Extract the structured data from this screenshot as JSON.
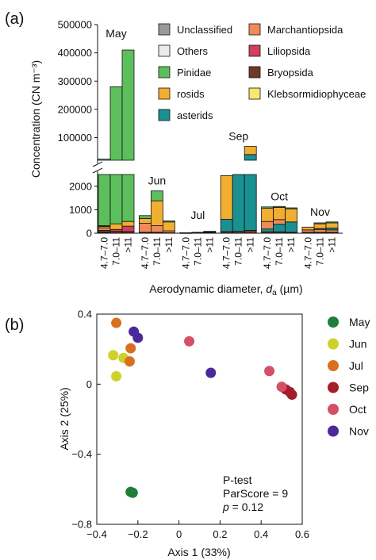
{
  "panel_a": {
    "label": "(a)",
    "ylabel": "Concentration (CN m⁻³)",
    "xlabel_main": "Aerodynamic diameter,",
    "xlabel_var": "d",
    "xlabel_sub": "a",
    "xlabel_unit": "(µm)"
  },
  "panel_b": {
    "label": "(b)",
    "stats_title": "P-test",
    "stats_score": "ParScore = 9",
    "stats_p_var": "p",
    "stats_p_rest": " = 0.12"
  },
  "chart_data": [
    {
      "type": "bar",
      "stacked": true,
      "y_axis_broken": true,
      "y_lower_ticks": [
        0,
        1000,
        2000
      ],
      "y_upper_ticks": [
        100000,
        200000,
        300000,
        400000,
        500000
      ],
      "ylim_lower": [
        0,
        2500
      ],
      "ylim_upper": [
        20000,
        500000
      ],
      "legend": [
        {
          "name": "Unclassified",
          "color": "#9a9a9a"
        },
        {
          "name": "Others",
          "color": "#ebebeb"
        },
        {
          "name": "Pinidae",
          "color": "#5cbf5c"
        },
        {
          "name": "rosids",
          "color": "#f2ae30"
        },
        {
          "name": "asterids",
          "color": "#1a9090"
        },
        {
          "name": "Marchantiopsida",
          "color": "#f08a5a"
        },
        {
          "name": "Liliopsida",
          "color": "#d23f5e"
        },
        {
          "name": "Bryopsida",
          "color": "#6e3a24"
        },
        {
          "name": "Klebsormidiophyceae",
          "color": "#f6e870"
        }
      ],
      "size_bins": [
        "4.7–7.0",
        "7.0–11",
        ">11"
      ],
      "groups": [
        {
          "month": "May",
          "bars": [
            {
              "bin": "4.7–7.0",
              "segments": [
                {
                  "taxon": "Others",
                  "value": 30
                },
                {
                  "taxon": "Bryopsida",
                  "value": 90
                },
                {
                  "taxon": "Marchantiopsida",
                  "value": 110
                },
                {
                  "taxon": "rosids",
                  "value": 60
                },
                {
                  "taxon": "Liliopsida",
                  "value": 30
                },
                {
                  "taxon": "Pinidae",
                  "value": 23680
                }
              ]
            },
            {
              "bin": "7.0–11",
              "segments": [
                {
                  "taxon": "Bryopsida",
                  "value": 80
                },
                {
                  "taxon": "Liliopsida",
                  "value": 80
                },
                {
                  "taxon": "rosids",
                  "value": 240
                },
                {
                  "taxon": "Pinidae",
                  "value": 279600
                }
              ]
            },
            {
              "bin": ">11",
              "segments": [
                {
                  "taxon": "Bryopsida",
                  "value": 70
                },
                {
                  "taxon": "Liliopsida",
                  "value": 230
                },
                {
                  "taxon": "rosids",
                  "value": 200
                },
                {
                  "taxon": "Pinidae",
                  "value": 409500
                }
              ]
            }
          ]
        },
        {
          "month": "Jun",
          "bars": [
            {
              "bin": "4.7–7.0",
              "segments": [
                {
                  "taxon": "Bryopsida",
                  "value": 40
                },
                {
                  "taxon": "Marchantiopsida",
                  "value": 380
                },
                {
                  "taxon": "rosids",
                  "value": 210
                },
                {
                  "taxon": "Pinidae",
                  "value": 120
                }
              ]
            },
            {
              "bin": "7.0–11",
              "segments": [
                {
                  "taxon": "Bryopsida",
                  "value": 40
                },
                {
                  "taxon": "Marchantiopsida",
                  "value": 280
                },
                {
                  "taxon": "rosids",
                  "value": 1060
                },
                {
                  "taxon": "Pinidae",
                  "value": 420
                }
              ]
            },
            {
              "bin": ">11",
              "segments": [
                {
                  "taxon": "Bryopsida",
                  "value": 20
                },
                {
                  "taxon": "Marchantiopsida",
                  "value": 80
                },
                {
                  "taxon": "rosids",
                  "value": 380
                },
                {
                  "taxon": "Pinidae",
                  "value": 40
                }
              ]
            }
          ]
        },
        {
          "month": "Jul",
          "bars": [
            {
              "bin": "4.7–7.0",
              "segments": [
                {
                  "taxon": "Others",
                  "value": 10
                },
                {
                  "taxon": "rosids",
                  "value": 10
                }
              ]
            },
            {
              "bin": "7.0–11",
              "segments": [
                {
                  "taxon": "Others",
                  "value": 20
                },
                {
                  "taxon": "rosids",
                  "value": 20
                }
              ]
            },
            {
              "bin": ">11",
              "segments": [
                {
                  "taxon": "Others",
                  "value": 30
                },
                {
                  "taxon": "rosids",
                  "value": 30
                },
                {
                  "taxon": "Unclassified",
                  "value": 20
                }
              ]
            }
          ]
        },
        {
          "month": "Sep",
          "bars": [
            {
              "bin": "4.7–7.0",
              "segments": [
                {
                  "taxon": "Bryopsida",
                  "value": 70
                },
                {
                  "taxon": "asterids",
                  "value": 520
                },
                {
                  "taxon": "rosids",
                  "value": 1860
                }
              ]
            },
            {
              "bin": "7.0–11",
              "segments": [
                {
                  "taxon": "Bryopsida",
                  "value": 80
                },
                {
                  "taxon": "asterids",
                  "value": 9000
                },
                {
                  "taxon": "rosids",
                  "value": 1920
                }
              ]
            },
            {
              "bin": ">11",
              "segments": [
                {
                  "taxon": "Bryopsida",
                  "value": 120
                },
                {
                  "taxon": "asterids",
                  "value": 40000
                },
                {
                  "taxon": "rosids",
                  "value": 28880
                }
              ]
            }
          ]
        },
        {
          "month": "Oct",
          "bars": [
            {
              "bin": "4.7–7.0",
              "segments": [
                {
                  "taxon": "Bryopsida",
                  "value": 60
                },
                {
                  "taxon": "asterids",
                  "value": 120
                },
                {
                  "taxon": "Marchantiopsida",
                  "value": 320
                },
                {
                  "taxon": "rosids",
                  "value": 560
                },
                {
                  "taxon": "Pinidae",
                  "value": 60
                }
              ]
            },
            {
              "bin": "7.0–11",
              "segments": [
                {
                  "taxon": "Bryopsida",
                  "value": 60
                },
                {
                  "taxon": "asterids",
                  "value": 320
                },
                {
                  "taxon": "Marchantiopsida",
                  "value": 200
                },
                {
                  "taxon": "rosids",
                  "value": 520
                },
                {
                  "taxon": "Pinidae",
                  "value": 40
                }
              ]
            },
            {
              "bin": ">11",
              "segments": [
                {
                  "taxon": "Bryopsida",
                  "value": 40
                },
                {
                  "taxon": "asterids",
                  "value": 440
                },
                {
                  "taxon": "rosids",
                  "value": 560
                },
                {
                  "taxon": "Pinidae",
                  "value": 40
                }
              ]
            }
          ]
        },
        {
          "month": "Nov",
          "bars": [
            {
              "bin": "4.7–7.0",
              "segments": [
                {
                  "taxon": "Bryopsida",
                  "value": 40
                },
                {
                  "taxon": "Marchantiopsida",
                  "value": 100
                },
                {
                  "taxon": "rosids",
                  "value": 120
                }
              ]
            },
            {
              "bin": "7.0–11",
              "segments": [
                {
                  "taxon": "Bryopsida",
                  "value": 40
                },
                {
                  "taxon": "Marchantiopsida",
                  "value": 120
                },
                {
                  "taxon": "asterids",
                  "value": 40
                },
                {
                  "taxon": "rosids",
                  "value": 200
                },
                {
                  "taxon": "Pinidae",
                  "value": 40
                }
              ]
            },
            {
              "bin": ">11",
              "segments": [
                {
                  "taxon": "Bryopsida",
                  "value": 40
                },
                {
                  "taxon": "Marchantiopsida",
                  "value": 100
                },
                {
                  "taxon": "asterids",
                  "value": 80
                },
                {
                  "taxon": "rosids",
                  "value": 220
                },
                {
                  "taxon": "Pinidae",
                  "value": 40
                }
              ]
            }
          ]
        }
      ]
    },
    {
      "type": "scatter",
      "xlabel": "Axis 1 (33%)",
      "ylabel": "Axis 2 (25%)",
      "xlim": [
        -0.4,
        0.6
      ],
      "ylim": [
        -0.8,
        0.4
      ],
      "x_ticks": [
        -0.4,
        -0.2,
        0,
        0.2,
        0.4,
        0.6
      ],
      "x_tick_labels": [
        "−0.4",
        "−0.2",
        "0",
        "0.2",
        "0.4",
        "0.6"
      ],
      "y_ticks": [
        0.4,
        0,
        -0.4,
        -0.8
      ],
      "y_tick_labels": [
        "0.4",
        "0",
        "−0.4",
        "−0.8"
      ],
      "series": [
        {
          "name": "May",
          "color": "#1f7f3a",
          "points": [
            [
              -0.235,
              -0.615
            ],
            [
              -0.225,
              -0.62
            ]
          ]
        },
        {
          "name": "Jun",
          "color": "#cdd12a",
          "points": [
            [
              -0.32,
              0.165
            ],
            [
              -0.27,
              0.15
            ],
            [
              -0.305,
              0.045
            ]
          ]
        },
        {
          "name": "Jul",
          "color": "#d97020",
          "points": [
            [
              -0.305,
              0.35
            ],
            [
              -0.235,
              0.205
            ],
            [
              -0.24,
              0.13
            ]
          ]
        },
        {
          "name": "Sep",
          "color": "#a31d2a",
          "points": [
            [
              0.52,
              -0.03
            ],
            [
              0.54,
              -0.045
            ],
            [
              0.55,
              -0.06
            ]
          ]
        },
        {
          "name": "Oct",
          "color": "#d45066",
          "points": [
            [
              0.05,
              0.245
            ],
            [
              0.44,
              0.075
            ],
            [
              0.5,
              -0.015
            ]
          ]
        },
        {
          "name": "Nov",
          "color": "#4a2a9a",
          "points": [
            [
              -0.22,
              0.3
            ],
            [
              -0.2,
              0.265
            ],
            [
              0.155,
              0.065
            ]
          ]
        }
      ]
    }
  ]
}
